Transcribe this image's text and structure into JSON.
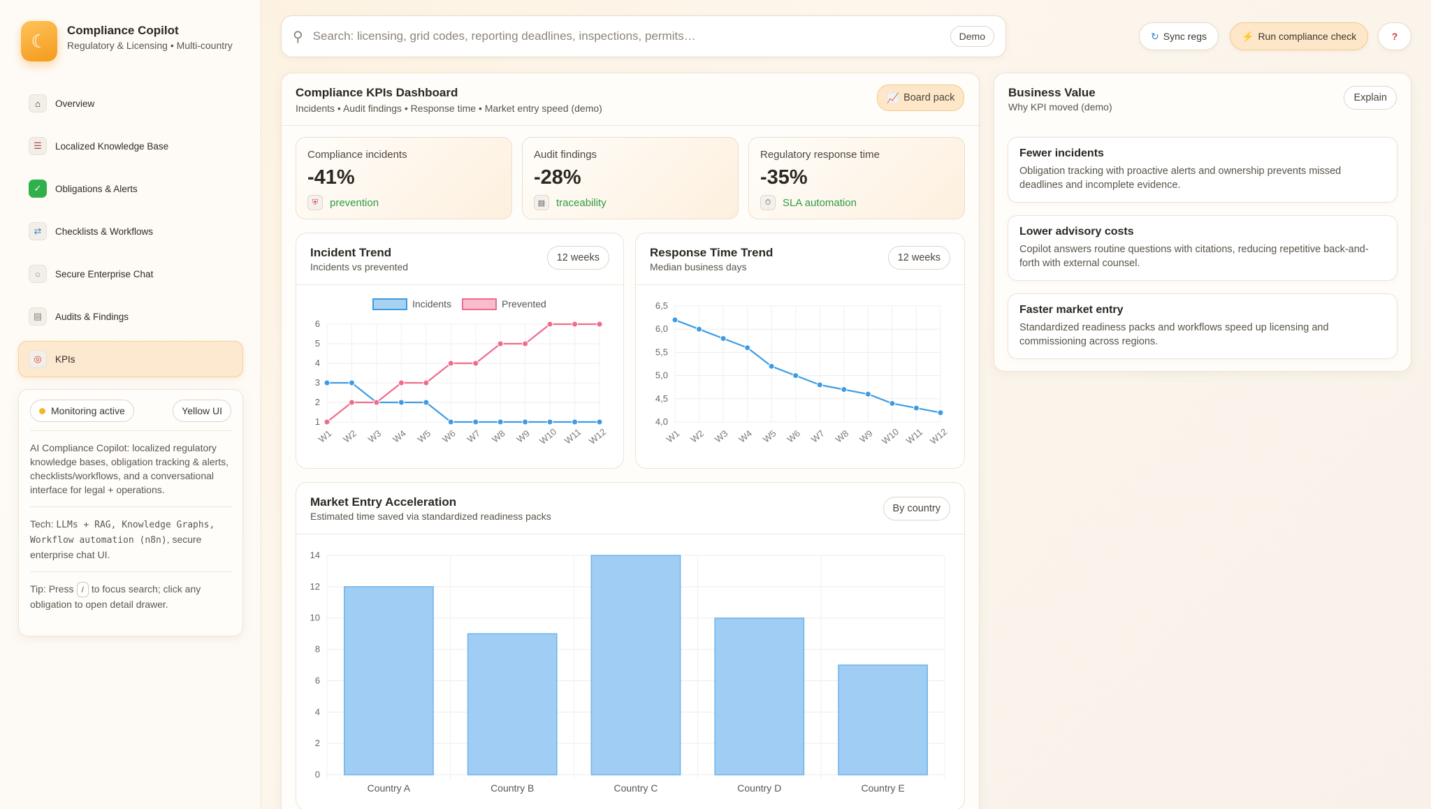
{
  "brand": {
    "title": "Compliance Copilot",
    "subtitle": "Regulatory & Licensing • Multi-country"
  },
  "nav": [
    {
      "label": "Overview",
      "icon": "house-icon"
    },
    {
      "label": "Localized Knowledge Base",
      "icon": "books-icon"
    },
    {
      "label": "Obligations & Alerts",
      "icon": "checkmark-icon"
    },
    {
      "label": "Checklists & Workflows",
      "icon": "workflow-icon"
    },
    {
      "label": "Secure Enterprise Chat",
      "icon": "chat-icon"
    },
    {
      "label": "Audits & Findings",
      "icon": "audit-icon"
    },
    {
      "label": "KPIs",
      "icon": "target-icon",
      "active": true
    }
  ],
  "status": {
    "monitoring": "Monitoring active",
    "theme": "Yellow UI",
    "description": "AI Compliance Copilot: localized regulatory knowledge bases, obligation tracking & alerts, checklists/workflows, and a conversational interface for legal + operations.",
    "tech_prefix": "Tech: ",
    "tech": "LLMs + RAG, Knowledge Graphs, Workflow automation (n8n)",
    "tech_suffix": ", secure enterprise chat UI.",
    "tip_prefix": "Tip: Press",
    "tip_key": "/",
    "tip_suffix": "to focus search; click any obligation to open detail drawer."
  },
  "search": {
    "placeholder": "Search: licensing, grid codes, reporting deadlines, inspections, permits…",
    "badge": "Demo"
  },
  "toolbar": {
    "sync_label": "Sync regs",
    "run_label": "Run compliance check",
    "help_label": "?"
  },
  "dashboard": {
    "title": "Compliance KPIs Dashboard",
    "subtitle": "Incidents • Audit findings • Response time • Market entry speed (demo)",
    "board_pack": "Board pack",
    "kpis": [
      {
        "label": "Compliance incidents",
        "value": "-41%",
        "foot": "prevention",
        "icon": "shield-icon"
      },
      {
        "label": "Audit findings",
        "value": "-28%",
        "foot": "traceability",
        "icon": "document-icon"
      },
      {
        "label": "Regulatory response time",
        "value": "-35%",
        "foot": "SLA automation",
        "icon": "stopwatch-icon"
      }
    ],
    "incident_trend": {
      "title": "Incident Trend",
      "subtitle": "Incidents vs prevented",
      "range": "12 weeks"
    },
    "response_trend": {
      "title": "Response Time Trend",
      "subtitle": "Median business days",
      "range": "12 weeks"
    },
    "market_entry": {
      "title": "Market Entry Acceleration",
      "subtitle": "Estimated time saved via standardized readiness packs",
      "filter": "By country"
    }
  },
  "business_value": {
    "title": "Business Value",
    "subtitle": "Why KPI moved (demo)",
    "explain": "Explain",
    "cards": [
      {
        "title": "Fewer incidents",
        "body": "Obligation tracking with proactive alerts and ownership prevents missed deadlines and incomplete evidence."
      },
      {
        "title": "Lower advisory costs",
        "body": "Copilot answers routine questions with citations, reducing repetitive back-and-forth with external counsel."
      },
      {
        "title": "Faster market entry",
        "body": "Standardized readiness packs and workflows speed up licensing and commissioning across regions."
      }
    ]
  },
  "chart_data": [
    {
      "type": "line",
      "x": [
        "W1",
        "W2",
        "W3",
        "W4",
        "W5",
        "W6",
        "W7",
        "W8",
        "W9",
        "W10",
        "W11",
        "W12"
      ],
      "series": [
        {
          "name": "Incidents",
          "values": [
            3,
            3,
            2,
            2,
            2,
            1,
            1,
            1,
            1,
            1,
            1,
            1
          ],
          "color": "#3d9be3"
        },
        {
          "name": "Prevented",
          "values": [
            1,
            2,
            2,
            3,
            3,
            4,
            4,
            5,
            5,
            6,
            6,
            6
          ],
          "color": "#ef6b8c"
        }
      ],
      "ylim": [
        1,
        6
      ],
      "yticks": [
        "1",
        "2",
        "3",
        "4",
        "5",
        "6"
      ],
      "legend": "top",
      "grid": true
    },
    {
      "type": "line",
      "x": [
        "W1",
        "W2",
        "W3",
        "W4",
        "W5",
        "W6",
        "W7",
        "W8",
        "W9",
        "W10",
        "W11",
        "W12"
      ],
      "series": [
        {
          "values": [
            6.2,
            6.0,
            5.8,
            5.6,
            5.2,
            5.0,
            4.8,
            4.7,
            4.6,
            4.4,
            4.3,
            4.2
          ],
          "color": "#3d9be3"
        }
      ],
      "ylim": [
        4.0,
        6.5
      ],
      "yticks": [
        "4,0",
        "4,5",
        "5,0",
        "5,5",
        "6,0",
        "6,5"
      ],
      "grid": true
    },
    {
      "type": "bar",
      "categories": [
        "Country A",
        "Country B",
        "Country C",
        "Country D",
        "Country E"
      ],
      "values": [
        12,
        9,
        14,
        10,
        7
      ],
      "ylim": [
        0,
        14
      ],
      "yticks": [
        "0",
        "2",
        "4",
        "6",
        "8",
        "10",
        "12",
        "14"
      ],
      "color": "#9fcdf3",
      "grid": true
    }
  ]
}
